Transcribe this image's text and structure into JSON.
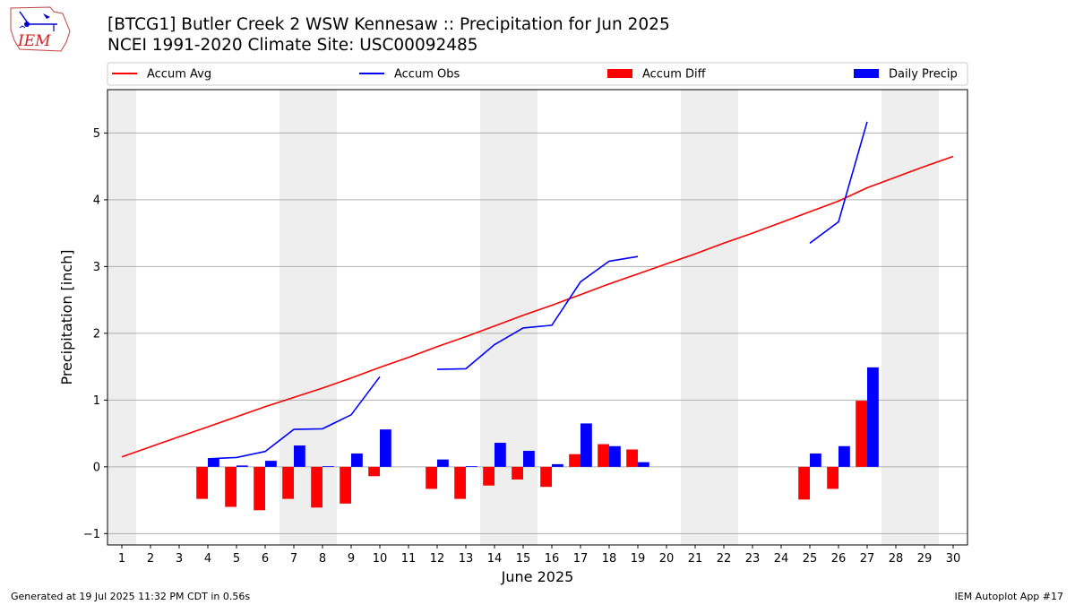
{
  "header": {
    "title_line1": "[BTCG1] Butler Creek 2 WSW Kennesaw :: Precipitation for Jun 2025",
    "title_line2": "NCEI 1991-2020 Climate Site: USC00092485"
  },
  "logo": {
    "text": "IEM"
  },
  "footer": {
    "left": "Generated at 19 Jul 2025 11:32 PM CDT in 0.56s",
    "right": "IEM Autoplot App #17"
  },
  "colors": {
    "accum_avg": "#ff0000",
    "accum_obs": "#0000ff",
    "accum_diff": "#ff0000",
    "daily_precip": "#0000ff",
    "weekend_shade": "#eeeeee",
    "grid": "#b0b0b0"
  },
  "chart_data": {
    "type": "bar",
    "xlabel": "June 2025",
    "ylabel": "Precipitation [inch]",
    "xlim": [
      0.5,
      30.5
    ],
    "ylim": [
      -1.17,
      5.65
    ],
    "yticks": [
      -1,
      0,
      1,
      2,
      3,
      4,
      5
    ],
    "grid": "horizontal",
    "legend_position": "top",
    "legend": [
      {
        "label": "Accum Avg",
        "kind": "line",
        "color": "#ff0000"
      },
      {
        "label": "Accum Obs",
        "kind": "line",
        "color": "#0000ff"
      },
      {
        "label": "Accum Diff",
        "kind": "bar",
        "color": "#ff0000"
      },
      {
        "label": "Daily Precip",
        "kind": "bar",
        "color": "#0000ff"
      }
    ],
    "days": [
      1,
      2,
      3,
      4,
      5,
      6,
      7,
      8,
      9,
      10,
      11,
      12,
      13,
      14,
      15,
      16,
      17,
      18,
      19,
      20,
      21,
      22,
      23,
      24,
      25,
      26,
      27,
      28,
      29,
      30
    ],
    "shaded_day_ranges": [
      [
        0.5,
        1.5
      ],
      [
        6.5,
        8.5
      ],
      [
        13.5,
        15.5
      ],
      [
        20.5,
        22.5
      ],
      [
        27.5,
        29.5
      ]
    ],
    "series": [
      {
        "name": "Accum Avg",
        "type": "line",
        "values": [
          0.15,
          0.3,
          0.45,
          0.6,
          0.75,
          0.9,
          1.04,
          1.18,
          1.33,
          1.49,
          1.64,
          1.8,
          1.95,
          2.11,
          2.27,
          2.42,
          2.58,
          2.74,
          2.89,
          3.04,
          3.19,
          3.35,
          3.5,
          3.66,
          3.82,
          3.98,
          4.18,
          4.34,
          4.5,
          4.65
        ]
      },
      {
        "name": "Accum Obs",
        "type": "line",
        "values": [
          null,
          null,
          null,
          0.12,
          0.14,
          0.23,
          0.56,
          0.57,
          0.78,
          1.35,
          null,
          1.46,
          1.47,
          1.83,
          2.08,
          2.12,
          2.77,
          3.08,
          3.15,
          null,
          null,
          null,
          null,
          null,
          3.35,
          3.67,
          5.17,
          null,
          null,
          null
        ]
      },
      {
        "name": "Accum Diff",
        "type": "bar",
        "values": [
          null,
          null,
          null,
          -0.48,
          -0.6,
          -0.65,
          -0.48,
          -0.61,
          -0.55,
          -0.14,
          null,
          -0.33,
          -0.48,
          -0.28,
          -0.19,
          -0.3,
          0.19,
          0.34,
          0.26,
          null,
          null,
          null,
          null,
          null,
          -0.49,
          -0.33,
          0.99,
          null,
          null,
          null
        ]
      },
      {
        "name": "Daily Precip",
        "type": "bar",
        "values": [
          null,
          null,
          null,
          0.12,
          0.02,
          0.09,
          0.32,
          0.01,
          0.2,
          0.56,
          null,
          0.11,
          0.01,
          0.36,
          0.24,
          0.04,
          0.65,
          0.31,
          0.07,
          null,
          null,
          null,
          null,
          null,
          0.2,
          0.31,
          1.49,
          null,
          null,
          null
        ]
      }
    ]
  }
}
